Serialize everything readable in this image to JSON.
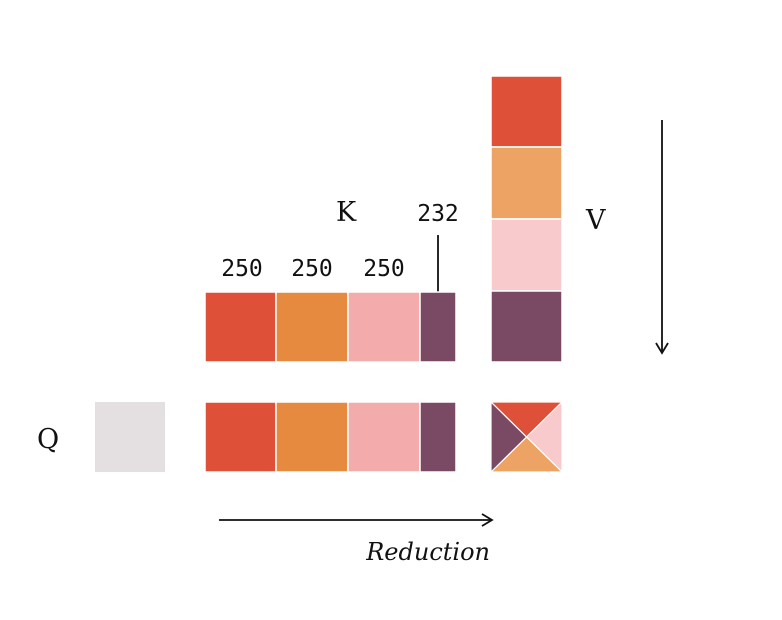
{
  "labels": {
    "q": "Q",
    "k": "K",
    "v": "V",
    "reduction": "Reduction"
  },
  "block_sizes": [
    "250",
    "250",
    "250",
    "232"
  ],
  "colors": {
    "red": "#df5039",
    "orange": "#e68a40",
    "pink": "#f3abac",
    "purple": "#7a4a65",
    "light_orange": "#eca363",
    "light_pink": "#f8cacc",
    "gray": "#e4e0e1",
    "line": "#111111"
  }
}
